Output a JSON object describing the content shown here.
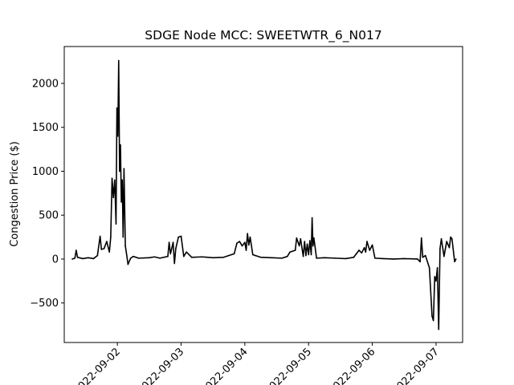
{
  "chart_data": {
    "type": "line",
    "title": "SDGE Node MCC: SWEETWTR_6_N017",
    "xlabel": "",
    "ylabel": "Congestion Price ($)",
    "x_axis_type": "date",
    "xlim": [
      "2022-09-01 04:00",
      "2022-09-07 10:00"
    ],
    "ylim": [
      -950,
      2420
    ],
    "grid": false,
    "legend": "none",
    "x_ticks": [
      "2022-09-02",
      "2022-09-03",
      "2022-09-04",
      "2022-09-05",
      "2022-09-06",
      "2022-09-07"
    ],
    "y_ticks": [
      -500,
      0,
      500,
      1000,
      1500,
      2000
    ],
    "y_tick_labels": [
      "−500",
      "0",
      "500",
      "1000",
      "1500",
      "2000"
    ],
    "series": [
      {
        "color": "#000000",
        "points": [
          [
            "2022-09-01 07:00",
            0
          ],
          [
            "2022-09-01 08:00",
            10
          ],
          [
            "2022-09-01 08:30",
            100
          ],
          [
            "2022-09-01 09:00",
            20
          ],
          [
            "2022-09-01 11:00",
            5
          ],
          [
            "2022-09-01 13:00",
            15
          ],
          [
            "2022-09-01 15:00",
            5
          ],
          [
            "2022-09-01 16:30",
            40
          ],
          [
            "2022-09-01 17:30",
            260
          ],
          [
            "2022-09-01 18:00",
            110
          ],
          [
            "2022-09-01 19:00",
            120
          ],
          [
            "2022-09-01 20:00",
            200
          ],
          [
            "2022-09-01 21:00",
            80
          ],
          [
            "2022-09-01 21:30",
            250
          ],
          [
            "2022-09-01 22:00",
            920
          ],
          [
            "2022-09-01 22:30",
            700
          ],
          [
            "2022-09-01 23:00",
            900
          ],
          [
            "2022-09-01 23:30",
            400
          ],
          [
            "2022-09-01 23:50",
            1720
          ],
          [
            "2022-09-02 00:10",
            1400
          ],
          [
            "2022-09-02 00:30",
            2260
          ],
          [
            "2022-09-02 00:50",
            1000
          ],
          [
            "2022-09-02 01:10",
            1300
          ],
          [
            "2022-09-02 01:30",
            650
          ],
          [
            "2022-09-02 01:50",
            900
          ],
          [
            "2022-09-02 02:10",
            250
          ],
          [
            "2022-09-02 02:30",
            1030
          ],
          [
            "2022-09-02 03:00",
            150
          ],
          [
            "2022-09-02 03:30",
            50
          ],
          [
            "2022-09-02 04:00",
            -60
          ],
          [
            "2022-09-02 05:00",
            10
          ],
          [
            "2022-09-02 06:00",
            30
          ],
          [
            "2022-09-02 08:00",
            10
          ],
          [
            "2022-09-02 12:00",
            15
          ],
          [
            "2022-09-02 14:00",
            25
          ],
          [
            "2022-09-02 16:00",
            10
          ],
          [
            "2022-09-02 19:00",
            30
          ],
          [
            "2022-09-02 19:30",
            190
          ],
          [
            "2022-09-02 20:00",
            60
          ],
          [
            "2022-09-02 21:00",
            190
          ],
          [
            "2022-09-02 21:30",
            -50
          ],
          [
            "2022-09-02 22:00",
            120
          ],
          [
            "2022-09-02 23:00",
            250
          ],
          [
            "2022-09-03 00:00",
            260
          ],
          [
            "2022-09-03 01:00",
            30
          ],
          [
            "2022-09-03 02:00",
            80
          ],
          [
            "2022-09-03 04:00",
            20
          ],
          [
            "2022-09-03 08:00",
            25
          ],
          [
            "2022-09-03 12:00",
            15
          ],
          [
            "2022-09-03 16:00",
            20
          ],
          [
            "2022-09-03 20:00",
            60
          ],
          [
            "2022-09-03 21:00",
            180
          ],
          [
            "2022-09-03 22:00",
            200
          ],
          [
            "2022-09-03 23:00",
            150
          ],
          [
            "2022-09-04 00:00",
            190
          ],
          [
            "2022-09-04 00:30",
            100
          ],
          [
            "2022-09-04 01:00",
            290
          ],
          [
            "2022-09-04 01:30",
            160
          ],
          [
            "2022-09-04 02:00",
            250
          ],
          [
            "2022-09-04 03:00",
            50
          ],
          [
            "2022-09-04 04:00",
            40
          ],
          [
            "2022-09-04 06:00",
            20
          ],
          [
            "2022-09-04 10:00",
            15
          ],
          [
            "2022-09-04 14:00",
            10
          ],
          [
            "2022-09-04 16:00",
            30
          ],
          [
            "2022-09-04 17:00",
            80
          ],
          [
            "2022-09-04 19:00",
            100
          ],
          [
            "2022-09-04 19:30",
            240
          ],
          [
            "2022-09-04 20:30",
            150
          ],
          [
            "2022-09-04 21:00",
            230
          ],
          [
            "2022-09-04 22:00",
            30
          ],
          [
            "2022-09-04 22:30",
            200
          ],
          [
            "2022-09-04 23:00",
            40
          ],
          [
            "2022-09-04 23:30",
            170
          ],
          [
            "2022-09-05 00:00",
            50
          ],
          [
            "2022-09-05 00:30",
            210
          ],
          [
            "2022-09-05 01:00",
            50
          ],
          [
            "2022-09-05 01:20",
            470
          ],
          [
            "2022-09-05 01:40",
            150
          ],
          [
            "2022-09-05 02:00",
            240
          ],
          [
            "2022-09-05 03:00",
            10
          ],
          [
            "2022-09-05 06:00",
            15
          ],
          [
            "2022-09-05 10:00",
            10
          ],
          [
            "2022-09-05 14:00",
            5
          ],
          [
            "2022-09-05 17:00",
            20
          ],
          [
            "2022-09-05 18:00",
            60
          ],
          [
            "2022-09-05 19:00",
            100
          ],
          [
            "2022-09-05 20:00",
            70
          ],
          [
            "2022-09-05 21:00",
            130
          ],
          [
            "2022-09-05 21:30",
            80
          ],
          [
            "2022-09-05 22:00",
            200
          ],
          [
            "2022-09-05 23:00",
            100
          ],
          [
            "2022-09-06 00:00",
            160
          ],
          [
            "2022-09-06 01:00",
            10
          ],
          [
            "2022-09-06 04:00",
            5
          ],
          [
            "2022-09-06 08:00",
            0
          ],
          [
            "2022-09-06 12:00",
            5
          ],
          [
            "2022-09-06 17:00",
            0
          ],
          [
            "2022-09-06 18:00",
            -30
          ],
          [
            "2022-09-06 18:30",
            240
          ],
          [
            "2022-09-06 19:00",
            20
          ],
          [
            "2022-09-06 20:00",
            40
          ],
          [
            "2022-09-06 21:30",
            -100
          ],
          [
            "2022-09-06 22:30",
            -650
          ],
          [
            "2022-09-06 23:00",
            -700
          ],
          [
            "2022-09-06 23:30",
            -200
          ],
          [
            "2022-09-07 00:00",
            -250
          ],
          [
            "2022-09-07 00:30",
            -100
          ],
          [
            "2022-09-07 01:00",
            -800
          ],
          [
            "2022-09-07 01:30",
            120
          ],
          [
            "2022-09-07 02:00",
            230
          ],
          [
            "2022-09-07 03:00",
            30
          ],
          [
            "2022-09-07 04:00",
            200
          ],
          [
            "2022-09-07 05:00",
            130
          ],
          [
            "2022-09-07 05:30",
            250
          ],
          [
            "2022-09-07 06:00",
            230
          ],
          [
            "2022-09-07 07:00",
            -30
          ],
          [
            "2022-09-07 07:30",
            0
          ]
        ]
      }
    ]
  }
}
